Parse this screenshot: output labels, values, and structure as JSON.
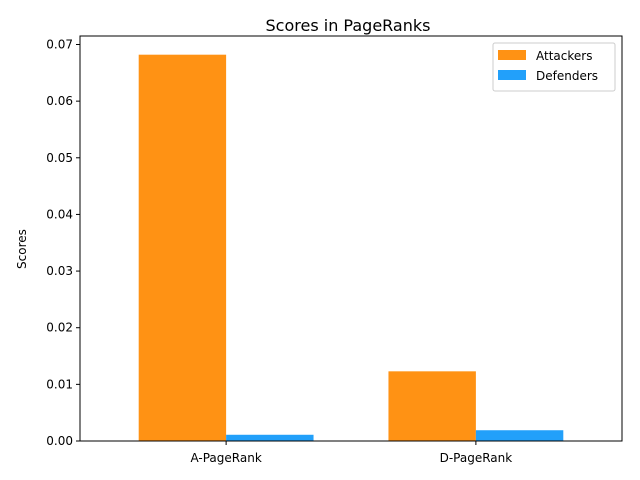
{
  "chart_data": {
    "type": "bar",
    "title": "Scores in PageRanks",
    "xlabel": "",
    "ylabel": "Scores",
    "categories": [
      "A-PageRank",
      "D-PageRank"
    ],
    "series": [
      {
        "name": "Attackers",
        "values": [
          0.0682,
          0.0123
        ],
        "color": "#ff9214"
      },
      {
        "name": "Defenders",
        "values": [
          0.0011,
          0.0019
        ],
        "color": "#22a0fa"
      }
    ],
    "ylim": [
      0,
      0.0715
    ],
    "yticks": [
      0,
      0.01,
      0.02,
      0.03,
      0.04,
      0.05,
      0.06,
      0.07
    ],
    "ytick_labels": [
      "0.00",
      "0.01",
      "0.02",
      "0.03",
      "0.04",
      "0.05",
      "0.06",
      "0.07"
    ],
    "legend_position": "top-right",
    "grid": false
  }
}
